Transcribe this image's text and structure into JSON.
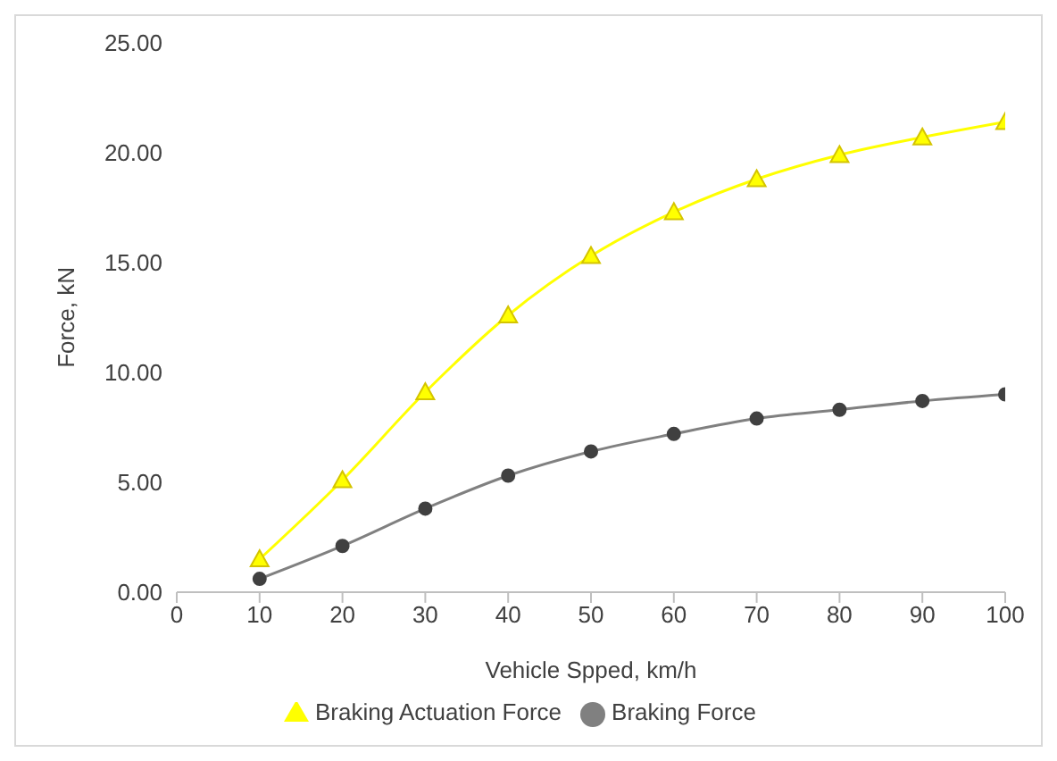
{
  "chart_data": {
    "type": "line",
    "xlabel": "Vehicle Spped, km/h",
    "ylabel": "Force, kN",
    "x": [
      10,
      20,
      30,
      40,
      50,
      60,
      70,
      80,
      90,
      100
    ],
    "series": [
      {
        "name": "Braking Force",
        "color": "#404040",
        "marker": "circle",
        "values": [
          0.6,
          2.1,
          3.8,
          5.3,
          6.4,
          7.2,
          7.9,
          8.3,
          8.7,
          9.0
        ]
      },
      {
        "name": "Braking Actuation Force",
        "color": "#ffff00",
        "marker": "triangle",
        "values": [
          1.5,
          5.1,
          9.1,
          12.6,
          15.3,
          17.3,
          18.8,
          19.9,
          20.7,
          21.4
        ]
      }
    ],
    "xlim": [
      0,
      100
    ],
    "xticks": [
      0,
      10,
      20,
      30,
      40,
      50,
      60,
      70,
      80,
      90,
      100
    ],
    "ylim": [
      0,
      25
    ],
    "yticks": [
      {
        "value": 0,
        "label": "0.00"
      },
      {
        "value": 5,
        "label": "5.00"
      },
      {
        "value": 10,
        "label": "10.00"
      },
      {
        "value": 15,
        "label": "15.00"
      },
      {
        "value": 20,
        "label": "20.00"
      },
      {
        "value": 25,
        "label": "25.00"
      }
    ],
    "grid": false,
    "legend": "bottom",
    "line_style": "solid"
  }
}
